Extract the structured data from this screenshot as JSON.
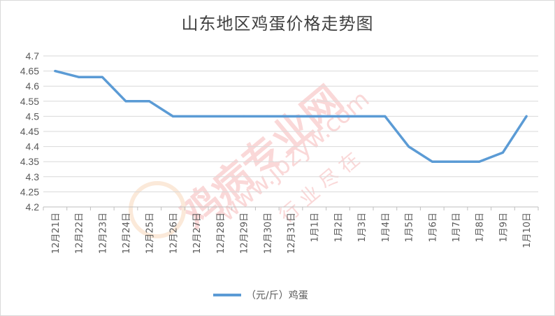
{
  "chart_data": {
    "type": "line",
    "title": "山东地区鸡蛋价格走势图",
    "categories": [
      "12月21日",
      "12月22日",
      "12月23日",
      "12月24日",
      "12月25日",
      "12月26日",
      "12月27日",
      "12月28日",
      "12月29日",
      "12月30日",
      "12月31日",
      "1月1日",
      "1月2日",
      "1月3日",
      "1月4日",
      "1月5日",
      "1月6日",
      "1月7日",
      "1月8日",
      "1月9日",
      "1月10日"
    ],
    "series": [
      {
        "name": "（元/斤）鸡蛋",
        "color": "#5b9bd5",
        "values": [
          4.65,
          4.63,
          4.63,
          4.55,
          4.55,
          4.5,
          4.5,
          4.5,
          4.5,
          4.5,
          4.5,
          4.5,
          4.5,
          4.5,
          4.5,
          4.4,
          4.35,
          4.35,
          4.35,
          4.38,
          4.5
        ]
      }
    ],
    "ylim": [
      4.2,
      4.7
    ],
    "yticks": [
      "4.2",
      "4.25",
      "4.3",
      "4.35",
      "4.4",
      "4.45",
      "4.5",
      "4.55",
      "4.6",
      "4.65",
      "4.7"
    ],
    "grid": true,
    "legend": "bottom"
  },
  "watermark": {
    "main": "鸡病专业网",
    "url": "www.jbzyw.com",
    "slogan": "行 业 尽 在"
  }
}
